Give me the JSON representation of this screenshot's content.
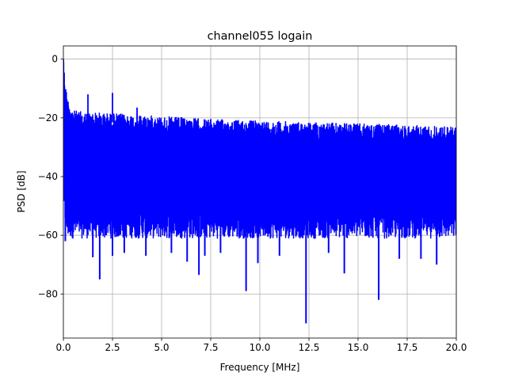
{
  "chart_data": {
    "type": "line",
    "title": "channel055 logain",
    "xlabel": "Frequency [MHz]",
    "ylabel": "PSD [dB]",
    "xlim": [
      0,
      20
    ],
    "ylim": [
      -95,
      4.5
    ],
    "xticks": [
      0,
      2.5,
      5,
      7.5,
      10,
      12.5,
      15,
      17.5,
      20
    ],
    "xtick_labels": [
      "0.0",
      "2.5",
      "5.0",
      "7.5",
      "10.0",
      "12.5",
      "15.0",
      "17.5",
      "20.0"
    ],
    "yticks": [
      0,
      -20,
      -40,
      -60,
      -80
    ],
    "ytick_labels": [
      "0",
      "−20",
      "−40",
      "−60",
      "−80"
    ],
    "grid": true,
    "series": [
      {
        "color": "#0000ff",
        "description": "Dense noise-like PSD trace; upper envelope falls from about -18 dB at 0.5 MHz to about -23 dB at 20 MHz, lower envelope mostly between -55 and -62 dB",
        "envelope_x": [
          0.0,
          0.1,
          0.2,
          0.5,
          1.0,
          2.5,
          5.0,
          7.5,
          10.0,
          12.5,
          15.0,
          17.5,
          20.0
        ],
        "envelope_upper": [
          0.0,
          -8,
          -13,
          -17.5,
          -18,
          -18.5,
          -19.5,
          -20.5,
          -21,
          -21.5,
          -22,
          -22.5,
          -23
        ],
        "envelope_lower": [
          -50,
          -55,
          -58,
          -58,
          -58,
          -58,
          -58,
          -58,
          -58,
          -58,
          -58,
          -58,
          -58
        ],
        "peaks": [
          {
            "x": 0.0,
            "y": 0.0
          },
          {
            "x": 1.25,
            "y": -12
          },
          {
            "x": 2.5,
            "y": -11.5
          },
          {
            "x": 3.75,
            "y": -16.5
          }
        ],
        "notches": [
          {
            "x": 0.1,
            "y": -62
          },
          {
            "x": 1.5,
            "y": -67.5
          },
          {
            "x": 1.85,
            "y": -75
          },
          {
            "x": 2.5,
            "y": -67
          },
          {
            "x": 3.1,
            "y": -66
          },
          {
            "x": 4.2,
            "y": -67
          },
          {
            "x": 5.5,
            "y": -66
          },
          {
            "x": 6.3,
            "y": -69
          },
          {
            "x": 6.9,
            "y": -73.5
          },
          {
            "x": 7.2,
            "y": -67
          },
          {
            "x": 8.0,
            "y": -66
          },
          {
            "x": 9.3,
            "y": -79
          },
          {
            "x": 9.9,
            "y": -69.5
          },
          {
            "x": 11.0,
            "y": -67
          },
          {
            "x": 12.35,
            "y": -90
          },
          {
            "x": 13.5,
            "y": -66
          },
          {
            "x": 14.3,
            "y": -73
          },
          {
            "x": 16.05,
            "y": -82
          },
          {
            "x": 17.1,
            "y": -68
          },
          {
            "x": 18.2,
            "y": -68
          },
          {
            "x": 19.0,
            "y": -70
          }
        ]
      }
    ]
  }
}
